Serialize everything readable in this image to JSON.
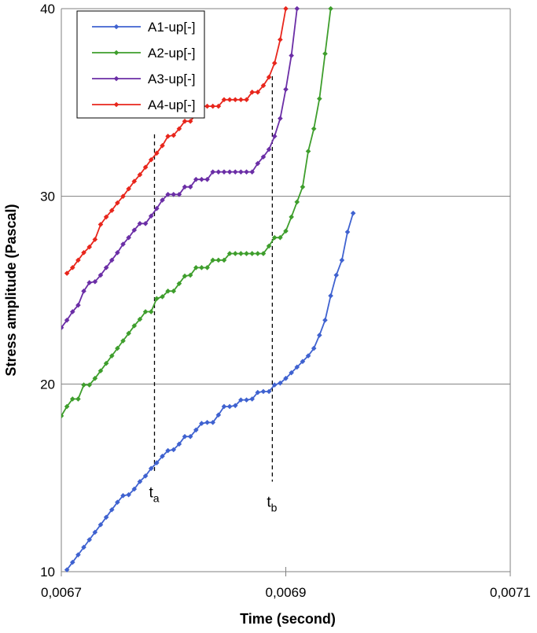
{
  "chart_data": {
    "type": "line",
    "xlabel": "Time (second)",
    "ylabel": "Stress  amplitude (Pascal)",
    "xlim": [
      0.0067,
      0.0071
    ],
    "ylim": [
      10,
      40
    ],
    "x_tick_labels": [
      "0,0067",
      "0,0069",
      "0,0071"
    ],
    "x_ticks": [
      0.0067,
      0.0069,
      0.0071
    ],
    "y_tick_labels": [
      "10",
      "20",
      "30",
      "40"
    ],
    "y_ticks": [
      10,
      20,
      30,
      40
    ],
    "grid": "horizontal",
    "legend_position": "top-left",
    "series": [
      {
        "name": "A1-up[-]",
        "color": "#3f62d0",
        "points": [
          [
            0.006705,
            10.1
          ],
          [
            0.00671,
            10.5
          ],
          [
            0.006715,
            10.9
          ],
          [
            0.00672,
            11.3
          ],
          [
            0.006725,
            11.7
          ],
          [
            0.00673,
            12.1
          ],
          [
            0.006735,
            12.5
          ],
          [
            0.00674,
            12.9
          ],
          [
            0.006745,
            13.3
          ],
          [
            0.00675,
            13.7
          ],
          [
            0.006755,
            14.05
          ],
          [
            0.00676,
            14.1
          ],
          [
            0.006765,
            14.4
          ],
          [
            0.00677,
            14.8
          ],
          [
            0.006775,
            15.1
          ],
          [
            0.00678,
            15.5
          ],
          [
            0.006785,
            15.8
          ],
          [
            0.00679,
            16.15
          ],
          [
            0.006795,
            16.45
          ],
          [
            0.0068,
            16.5
          ],
          [
            0.006805,
            16.8
          ],
          [
            0.00681,
            17.2
          ],
          [
            0.006815,
            17.2
          ],
          [
            0.00682,
            17.55
          ],
          [
            0.006825,
            17.9
          ],
          [
            0.00683,
            17.95
          ],
          [
            0.006835,
            17.95
          ],
          [
            0.00684,
            18.35
          ],
          [
            0.006845,
            18.8
          ],
          [
            0.00685,
            18.8
          ],
          [
            0.006855,
            18.85
          ],
          [
            0.00686,
            19.15
          ],
          [
            0.006865,
            19.15
          ],
          [
            0.00687,
            19.2
          ],
          [
            0.006875,
            19.55
          ],
          [
            0.00688,
            19.6
          ],
          [
            0.006885,
            19.6
          ],
          [
            0.00689,
            19.95
          ],
          [
            0.006895,
            20.05
          ],
          [
            0.0069,
            20.3
          ],
          [
            0.006905,
            20.6
          ],
          [
            0.00691,
            20.9
          ],
          [
            0.006915,
            21.2
          ],
          [
            0.00692,
            21.5
          ],
          [
            0.006925,
            21.9
          ],
          [
            0.00693,
            22.6
          ],
          [
            0.006935,
            23.4
          ],
          [
            0.00694,
            24.7
          ],
          [
            0.006945,
            25.8
          ],
          [
            0.00695,
            26.6
          ],
          [
            0.006955,
            28.1
          ],
          [
            0.00696,
            29.1
          ]
        ]
      },
      {
        "name": "A2-up[-]",
        "color": "#3e9e2c",
        "points": [
          [
            0.0067,
            18.3
          ],
          [
            0.006705,
            18.8
          ],
          [
            0.00671,
            19.2
          ],
          [
            0.006715,
            19.2
          ],
          [
            0.00672,
            19.95
          ],
          [
            0.006725,
            19.95
          ],
          [
            0.00673,
            20.3
          ],
          [
            0.006735,
            20.7
          ],
          [
            0.00674,
            21.1
          ],
          [
            0.006745,
            21.5
          ],
          [
            0.00675,
            21.9
          ],
          [
            0.006755,
            22.3
          ],
          [
            0.00676,
            22.7
          ],
          [
            0.006765,
            23.1
          ],
          [
            0.00677,
            23.45
          ],
          [
            0.006775,
            23.85
          ],
          [
            0.00678,
            23.85
          ],
          [
            0.006785,
            24.55
          ],
          [
            0.00679,
            24.65
          ],
          [
            0.006795,
            24.95
          ],
          [
            0.0068,
            24.95
          ],
          [
            0.006805,
            25.35
          ],
          [
            0.00681,
            25.75
          ],
          [
            0.006815,
            25.8
          ],
          [
            0.00682,
            26.2
          ],
          [
            0.006825,
            26.2
          ],
          [
            0.00683,
            26.2
          ],
          [
            0.006835,
            26.6
          ],
          [
            0.00684,
            26.6
          ],
          [
            0.006845,
            26.6
          ],
          [
            0.00685,
            26.95
          ],
          [
            0.006855,
            26.95
          ],
          [
            0.00686,
            26.95
          ],
          [
            0.006865,
            26.95
          ],
          [
            0.00687,
            26.95
          ],
          [
            0.006875,
            26.95
          ],
          [
            0.00688,
            26.95
          ],
          [
            0.006885,
            27.35
          ],
          [
            0.00689,
            27.8
          ],
          [
            0.006895,
            27.8
          ],
          [
            0.0069,
            28.15
          ],
          [
            0.006905,
            28.9
          ],
          [
            0.00691,
            29.7
          ],
          [
            0.006915,
            30.5
          ],
          [
            0.00692,
            32.4
          ],
          [
            0.006925,
            33.6
          ],
          [
            0.00693,
            35.2
          ],
          [
            0.006935,
            37.6
          ],
          [
            0.00694,
            40.0
          ]
        ]
      },
      {
        "name": "A3-up[-]",
        "color": "#6b2ea6",
        "points": [
          [
            0.0067,
            23.0
          ],
          [
            0.006705,
            23.4
          ],
          [
            0.00671,
            23.85
          ],
          [
            0.006715,
            24.2
          ],
          [
            0.00672,
            24.95
          ],
          [
            0.006725,
            25.4
          ],
          [
            0.00673,
            25.45
          ],
          [
            0.006735,
            25.8
          ],
          [
            0.00674,
            26.2
          ],
          [
            0.006745,
            26.6
          ],
          [
            0.00675,
            27.0
          ],
          [
            0.006755,
            27.45
          ],
          [
            0.00676,
            27.8
          ],
          [
            0.006765,
            28.2
          ],
          [
            0.00677,
            28.55
          ],
          [
            0.006775,
            28.55
          ],
          [
            0.00678,
            28.95
          ],
          [
            0.006785,
            29.35
          ],
          [
            0.00679,
            29.8
          ],
          [
            0.006795,
            30.1
          ],
          [
            0.0068,
            30.1
          ],
          [
            0.006805,
            30.1
          ],
          [
            0.00681,
            30.5
          ],
          [
            0.006815,
            30.5
          ],
          [
            0.00682,
            30.9
          ],
          [
            0.006825,
            30.9
          ],
          [
            0.00683,
            30.9
          ],
          [
            0.006835,
            31.3
          ],
          [
            0.00684,
            31.3
          ],
          [
            0.006845,
            31.3
          ],
          [
            0.00685,
            31.3
          ],
          [
            0.006855,
            31.3
          ],
          [
            0.00686,
            31.3
          ],
          [
            0.006865,
            31.3
          ],
          [
            0.00687,
            31.3
          ],
          [
            0.006875,
            31.75
          ],
          [
            0.00688,
            32.1
          ],
          [
            0.006885,
            32.5
          ],
          [
            0.00689,
            33.2
          ],
          [
            0.006895,
            34.15
          ],
          [
            0.0069,
            35.7
          ],
          [
            0.006905,
            37.5
          ],
          [
            0.00691,
            40.0
          ]
        ]
      },
      {
        "name": "A4-up[-]",
        "color": "#e8261c",
        "points": [
          [
            0.006705,
            25.9
          ],
          [
            0.00671,
            26.2
          ],
          [
            0.006715,
            26.6
          ],
          [
            0.00672,
            27.0
          ],
          [
            0.006725,
            27.3
          ],
          [
            0.00673,
            27.7
          ],
          [
            0.006735,
            28.5
          ],
          [
            0.00674,
            28.9
          ],
          [
            0.006745,
            29.25
          ],
          [
            0.00675,
            29.65
          ],
          [
            0.006755,
            30.0
          ],
          [
            0.00676,
            30.4
          ],
          [
            0.006765,
            30.8
          ],
          [
            0.00677,
            31.15
          ],
          [
            0.006775,
            31.55
          ],
          [
            0.00678,
            31.95
          ],
          [
            0.006785,
            32.3
          ],
          [
            0.00679,
            32.7
          ],
          [
            0.006795,
            33.2
          ],
          [
            0.0068,
            33.25
          ],
          [
            0.006805,
            33.6
          ],
          [
            0.00681,
            34.0
          ],
          [
            0.006815,
            34.0
          ],
          [
            0.00682,
            34.4
          ],
          [
            0.006825,
            34.8
          ],
          [
            0.00683,
            34.8
          ],
          [
            0.006835,
            34.8
          ],
          [
            0.00684,
            34.8
          ],
          [
            0.006845,
            35.15
          ],
          [
            0.00685,
            35.15
          ],
          [
            0.006855,
            35.15
          ],
          [
            0.00686,
            35.15
          ],
          [
            0.006865,
            35.15
          ],
          [
            0.00687,
            35.55
          ],
          [
            0.006875,
            35.55
          ],
          [
            0.00688,
            35.9
          ],
          [
            0.006885,
            36.35
          ],
          [
            0.00689,
            37.1
          ],
          [
            0.006895,
            38.35
          ],
          [
            0.0069,
            40.0
          ]
        ]
      }
    ],
    "annotations": [
      {
        "main": "t",
        "sub": "a",
        "x": 0.006783,
        "y_top": 33.3,
        "y_bottom": 15.3
      },
      {
        "main": "t",
        "sub": "b",
        "x": 0.006888,
        "y_top": 36.4,
        "y_bottom": 14.8
      }
    ]
  }
}
